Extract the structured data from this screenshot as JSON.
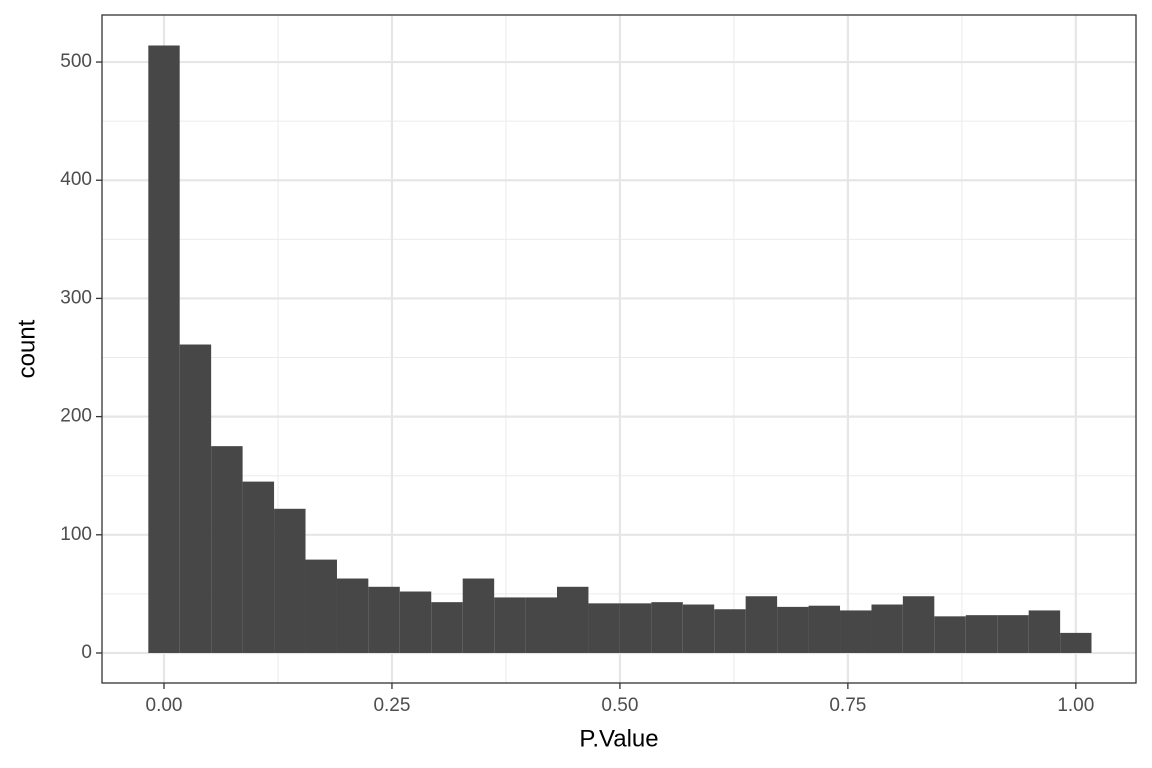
{
  "chart_data": {
    "type": "histogram",
    "x_label": "P.Value",
    "y_label": "count",
    "bins": [
      -0.0172,
      0.0172,
      0.0517,
      0.0862,
      0.1207,
      0.1552,
      0.1897,
      0.2241,
      0.2586,
      0.2931,
      0.3276,
      0.3621,
      0.3966,
      0.431,
      0.4655,
      0.5,
      0.5345,
      0.569,
      0.6034,
      0.6379,
      0.6724,
      0.7069,
      0.7414,
      0.7759,
      0.8103,
      0.8448,
      0.8793,
      0.9138,
      0.9483,
      0.9828,
      1.0172
    ],
    "counts": [
      514,
      261,
      175,
      145,
      122,
      79,
      63,
      56,
      52,
      43,
      63,
      47,
      47,
      56,
      42,
      42,
      43,
      41,
      37,
      48,
      39,
      40,
      36,
      41,
      48,
      31,
      32,
      32,
      36,
      17
    ],
    "color": "#474747",
    "xlim": [
      -0.068,
      1.066
    ],
    "ylim": [
      -25.4,
      539.8
    ],
    "xticks": [
      {
        "value": 0,
        "label": "0.00"
      },
      {
        "value": 0.25,
        "label": "0.25"
      },
      {
        "value": 0.5,
        "label": "0.50"
      },
      {
        "value": 0.75,
        "label": "0.75"
      },
      {
        "value": 1,
        "label": "1.00"
      }
    ],
    "yticks": [
      0,
      100,
      200,
      300,
      400,
      500
    ],
    "x_minor_ticks": [
      0.125,
      0.375,
      0.625,
      0.875
    ],
    "y_minor_ticks": [
      50,
      150,
      250,
      350,
      450
    ],
    "grid": true
  }
}
